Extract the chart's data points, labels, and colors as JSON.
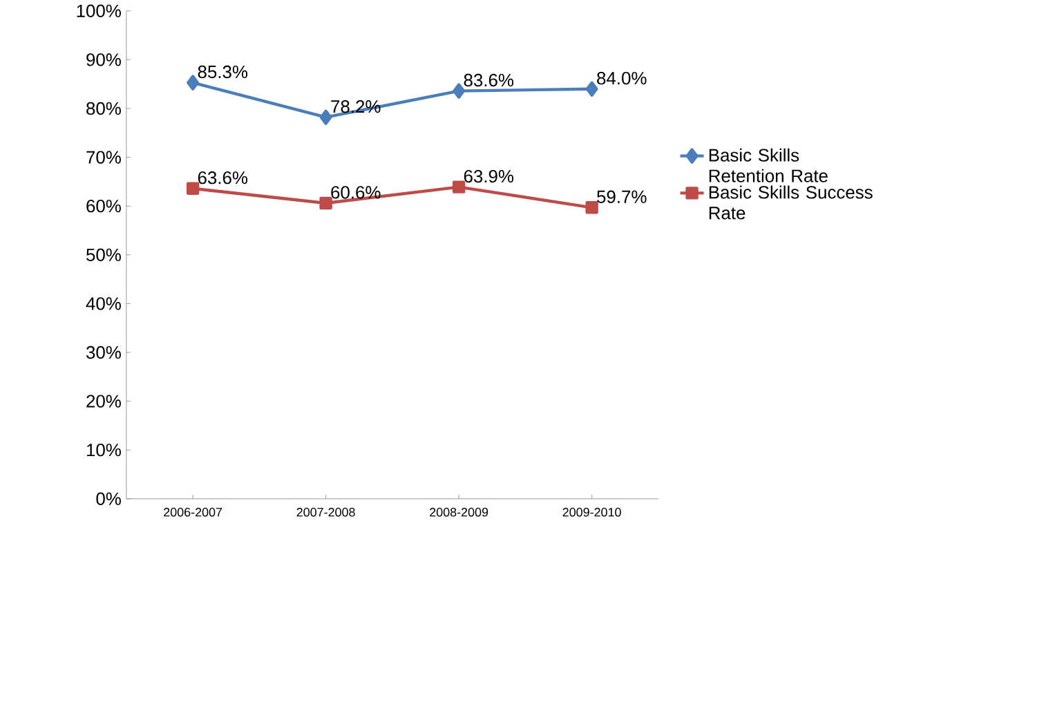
{
  "chart_data": {
    "type": "line",
    "categories": [
      "2006-2007",
      "2007-2008",
      "2008-2009",
      "2009-2010"
    ],
    "ylim": [
      0,
      100
    ],
    "yticks": [
      {
        "value": 0,
        "label": "0%"
      },
      {
        "value": 10,
        "label": "10%"
      },
      {
        "value": 20,
        "label": "20%"
      },
      {
        "value": 30,
        "label": "30%"
      },
      {
        "value": 40,
        "label": "40%"
      },
      {
        "value": 50,
        "label": "50%"
      },
      {
        "value": 60,
        "label": "60%"
      },
      {
        "value": 70,
        "label": "70%"
      },
      {
        "value": 80,
        "label": "80%"
      },
      {
        "value": 90,
        "label": "90%"
      },
      {
        "value": 100,
        "label": "100%"
      }
    ],
    "legend": "right",
    "line_style": "solid",
    "series": [
      {
        "name": "Basic Skills Retention Rate",
        "color": "#4a7ebb",
        "marker": "diamond",
        "values": [
          85.3,
          78.2,
          83.6,
          84.0
        ],
        "value_labels": [
          "85.3%",
          "78.2%",
          "83.6%",
          "84.0%"
        ]
      },
      {
        "name": "Basic Skills Success Rate",
        "color": "#be4b48",
        "marker": "square",
        "values": [
          63.6,
          60.6,
          63.9,
          59.7
        ],
        "value_labels": [
          "63.6%",
          "60.6%",
          "63.9%",
          "59.7%"
        ]
      }
    ]
  }
}
